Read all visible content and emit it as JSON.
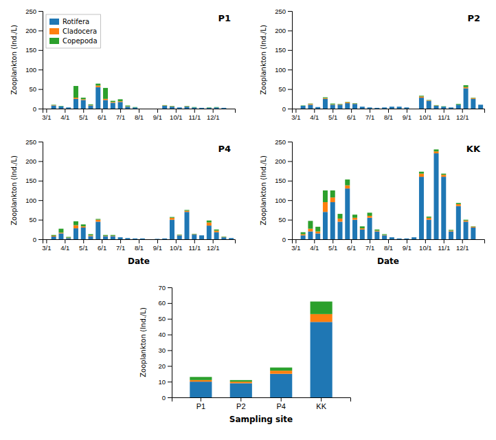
{
  "chart_data": [
    {
      "type": "bar",
      "stacked": true,
      "title": "P1",
      "legend": "upper left",
      "x": [
        1,
        2,
        3,
        4,
        5,
        6,
        7,
        8,
        9,
        10,
        11,
        12,
        13,
        14,
        15,
        16,
        17,
        18,
        19,
        20,
        21,
        22,
        23,
        24,
        25,
        26
      ],
      "xlim": [
        0.5,
        26.5
      ],
      "xticks": [
        {
          "value": 1,
          "label": "3/1"
        },
        {
          "value": 3.5,
          "label": "4/1"
        },
        {
          "value": 6,
          "label": "5/1"
        },
        {
          "value": 8.5,
          "label": "6/1"
        },
        {
          "value": 11,
          "label": "7/1"
        },
        {
          "value": 13.5,
          "label": "8/1"
        },
        {
          "value": 16,
          "label": "9/1"
        },
        {
          "value": 18.5,
          "label": "10/1"
        },
        {
          "value": 21,
          "label": "11/1"
        },
        {
          "value": 23.5,
          "label": "12/1"
        }
      ],
      "ylim": [
        0,
        250
      ],
      "yticks": [
        0,
        50,
        100,
        150,
        200,
        250
      ],
      "ylabel": "Zooplankton (Ind./L)",
      "series": [
        {
          "name": "Rotifera",
          "values": [
            0,
            8,
            6,
            3,
            25,
            22,
            8,
            55,
            22,
            15,
            17,
            5,
            3,
            0,
            0,
            0,
            7,
            5,
            3,
            5,
            3,
            2,
            2,
            3,
            2,
            0
          ]
        },
        {
          "name": "Cladocera",
          "values": [
            0,
            1,
            0,
            0,
            3,
            2,
            1,
            4,
            3,
            2,
            2,
            1,
            0,
            0,
            0,
            0,
            1,
            1,
            0,
            1,
            0,
            0,
            0,
            0,
            0,
            0
          ]
        },
        {
          "name": "Copepoda",
          "values": [
            0,
            1,
            1,
            0,
            30,
            4,
            2,
            5,
            28,
            3,
            5,
            2,
            1,
            0,
            0,
            0,
            1,
            1,
            0,
            1,
            1,
            0,
            1,
            1,
            0,
            0
          ]
        }
      ]
    },
    {
      "type": "bar",
      "stacked": true,
      "title": "P2",
      "x": [
        1,
        2,
        3,
        4,
        5,
        6,
        7,
        8,
        9,
        10,
        11,
        12,
        13,
        14,
        15,
        16,
        17,
        18,
        19,
        20,
        21,
        22,
        23,
        24,
        25,
        26
      ],
      "xlim": [
        0.5,
        26.5
      ],
      "xticks": [
        {
          "value": 1,
          "label": "3/1"
        },
        {
          "value": 3.5,
          "label": "4/1"
        },
        {
          "value": 6,
          "label": "5/1"
        },
        {
          "value": 8.5,
          "label": "6/1"
        },
        {
          "value": 11,
          "label": "7/1"
        },
        {
          "value": 13.5,
          "label": "8/1"
        },
        {
          "value": 16,
          "label": "9/1"
        },
        {
          "value": 18.5,
          "label": "10/1"
        },
        {
          "value": 21,
          "label": "11/1"
        },
        {
          "value": 23.5,
          "label": "12/1"
        }
      ],
      "ylim": [
        0,
        250
      ],
      "yticks": [
        0,
        50,
        100,
        150,
        200,
        250
      ],
      "ylabel": "Zooplankton (Ind./L)",
      "series": [
        {
          "values": [
            0,
            7,
            10,
            4,
            25,
            10,
            10,
            14,
            12,
            5,
            3,
            2,
            3,
            5,
            5,
            3,
            0,
            28,
            20,
            7,
            5,
            3,
            10,
            52,
            25,
            10
          ]
        },
        {
          "values": [
            0,
            0,
            2,
            0,
            2,
            1,
            1,
            2,
            1,
            0,
            0,
            0,
            0,
            0,
            0,
            0,
            0,
            3,
            1,
            1,
            0,
            0,
            0,
            3,
            2,
            0
          ]
        },
        {
          "values": [
            0,
            1,
            1,
            0,
            2,
            2,
            1,
            1,
            1,
            0,
            0,
            0,
            0,
            0,
            0,
            0,
            0,
            2,
            1,
            1,
            1,
            0,
            2,
            5,
            1,
            0
          ]
        }
      ]
    },
    {
      "type": "bar",
      "stacked": true,
      "title": "P4",
      "xlabel": "Date",
      "x": [
        1,
        2,
        3,
        4,
        5,
        6,
        7,
        8,
        9,
        10,
        11,
        12,
        13,
        14,
        15,
        16,
        17,
        18,
        19,
        20,
        21,
        22,
        23,
        24,
        25,
        26
      ],
      "xlim": [
        0.5,
        26.5
      ],
      "xticks": [
        {
          "value": 1,
          "label": "3/1"
        },
        {
          "value": 3.5,
          "label": "4/1"
        },
        {
          "value": 6,
          "label": "5/1"
        },
        {
          "value": 8.5,
          "label": "6/1"
        },
        {
          "value": 11,
          "label": "7/1"
        },
        {
          "value": 13.5,
          "label": "8/1"
        },
        {
          "value": 16,
          "label": "9/1"
        },
        {
          "value": 18.5,
          "label": "10/1"
        },
        {
          "value": 21,
          "label": "11/1"
        },
        {
          "value": 23.5,
          "label": "12/1"
        }
      ],
      "ylim": [
        0,
        250
      ],
      "yticks": [
        0,
        50,
        100,
        150,
        200,
        250
      ],
      "ylabel": "Zooplankton (Ind./L)",
      "series": [
        {
          "values": [
            0,
            7,
            15,
            3,
            28,
            30,
            8,
            45,
            8,
            8,
            5,
            3,
            2,
            2,
            0,
            1,
            2,
            50,
            10,
            70,
            12,
            10,
            35,
            18,
            5,
            3
          ]
        },
        {
          "values": [
            0,
            2,
            2,
            1,
            8,
            3,
            2,
            5,
            1,
            1,
            0,
            0,
            0,
            0,
            0,
            0,
            0,
            5,
            1,
            3,
            1,
            0,
            8,
            4,
            1,
            0
          ]
        },
        {
          "values": [
            0,
            2,
            10,
            2,
            10,
            5,
            3,
            2,
            2,
            2,
            0,
            0,
            0,
            0,
            0,
            0,
            0,
            2,
            1,
            2,
            1,
            0,
            5,
            3,
            1,
            0
          ]
        }
      ]
    },
    {
      "type": "bar",
      "stacked": true,
      "title": "KK",
      "xlabel": "Date",
      "x": [
        1,
        2,
        3,
        4,
        5,
        6,
        7,
        8,
        9,
        10,
        11,
        12,
        13,
        14,
        15,
        16,
        17,
        18,
        19,
        20,
        21,
        22,
        23,
        24,
        25,
        26
      ],
      "xlim": [
        0.5,
        26.5
      ],
      "xticks": [
        {
          "value": 1,
          "label": "3/1"
        },
        {
          "value": 3.5,
          "label": "4/1"
        },
        {
          "value": 6,
          "label": "5/1"
        },
        {
          "value": 8.5,
          "label": "6/1"
        },
        {
          "value": 11,
          "label": "7/1"
        },
        {
          "value": 13.5,
          "label": "8/1"
        },
        {
          "value": 16,
          "label": "9/1"
        },
        {
          "value": 18.5,
          "label": "10/1"
        },
        {
          "value": 21,
          "label": "11/1"
        },
        {
          "value": 23.5,
          "label": "12/1"
        }
      ],
      "ylim": [
        0,
        250
      ],
      "yticks": [
        0,
        50,
        100,
        150,
        200,
        250
      ],
      "ylabel": "Zooplankton (Ind./L)",
      "series": [
        {
          "values": [
            0,
            10,
            20,
            15,
            70,
            95,
            45,
            130,
            50,
            25,
            55,
            20,
            10,
            5,
            2,
            2,
            5,
            160,
            50,
            220,
            160,
            20,
            85,
            45,
            30,
            0
          ]
        },
        {
          "values": [
            0,
            3,
            7,
            5,
            25,
            12,
            8,
            8,
            5,
            3,
            5,
            2,
            1,
            0,
            0,
            0,
            0,
            8,
            5,
            5,
            5,
            2,
            5,
            3,
            2,
            0
          ]
        },
        {
          "values": [
            0,
            5,
            20,
            12,
            30,
            18,
            12,
            15,
            8,
            5,
            8,
            3,
            2,
            0,
            0,
            0,
            0,
            5,
            3,
            5,
            3,
            2,
            3,
            2,
            1,
            0
          ]
        }
      ]
    },
    {
      "type": "bar",
      "stacked": true,
      "xlabel": "Sampling site",
      "categories": [
        "P1",
        "P2",
        "P4",
        "KK"
      ],
      "ylim": [
        0,
        70
      ],
      "yticks": [
        0,
        10,
        20,
        30,
        40,
        50,
        60,
        70
      ],
      "ylabel": "Zooplankton (Ind./L)",
      "series": [
        {
          "values": [
            10,
            9,
            15,
            48
          ]
        },
        {
          "values": [
            1,
            1,
            2,
            5
          ]
        },
        {
          "values": [
            2,
            1,
            2,
            8
          ]
        }
      ]
    }
  ]
}
